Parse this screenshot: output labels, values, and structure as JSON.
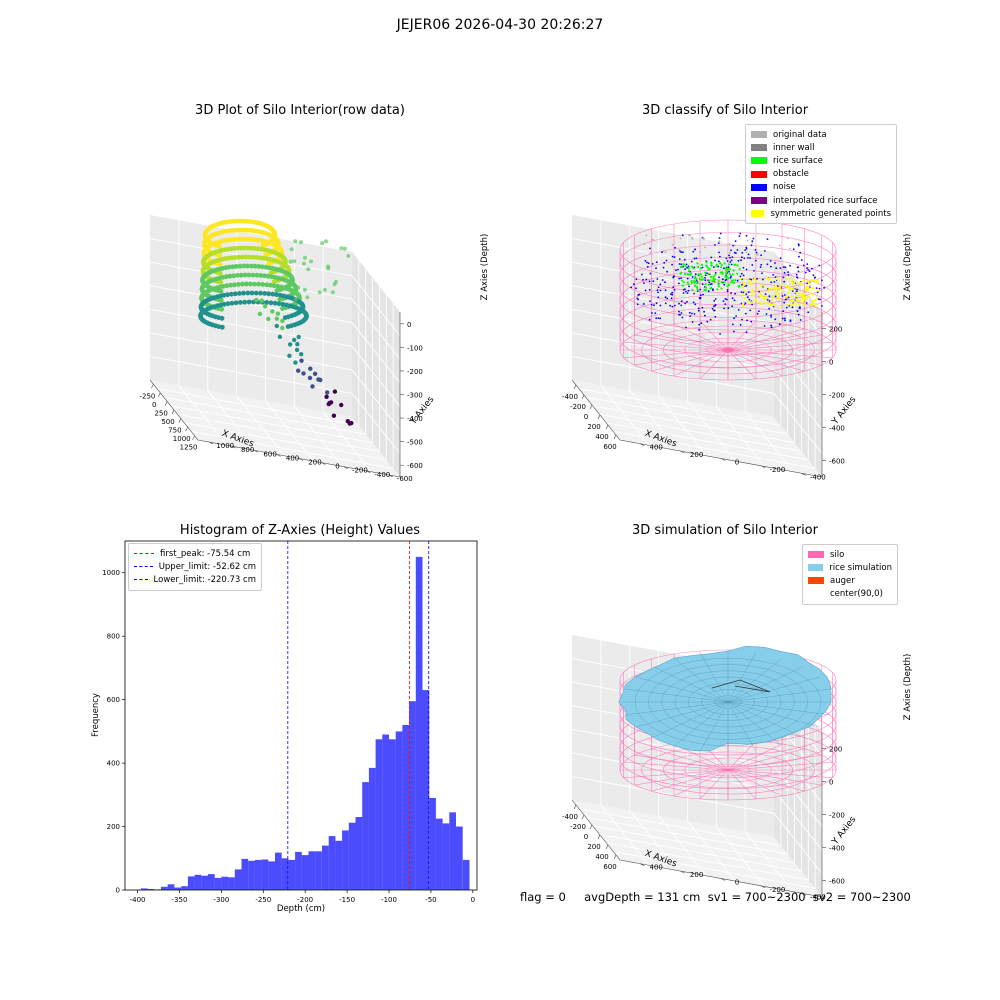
{
  "figure": {
    "title": "JEJER06 2026-04-30 20:26:27",
    "footer": "flag = 0     avgDepth = 131 cm  sv1 = 700~2300  sv2 = 700~2300"
  },
  "chart_data": [
    {
      "type": "scatter",
      "title": "3D Plot of Silo Interior(row data)",
      "xlabel": "X Axies",
      "ylabel": "Y Axies",
      "zlabel": "Z Axies (Depth)",
      "x_ticks": [
        "-250",
        "0",
        "250",
        "500",
        "750",
        "1000",
        "1250"
      ],
      "y_ticks": [
        "-600",
        "-400",
        "-200",
        "0",
        "200",
        "400",
        "600",
        "800",
        "1000"
      ],
      "z_ticks": [
        "0",
        "-100",
        "-200",
        "-300",
        "-400",
        "-500",
        "-600"
      ],
      "colormap": "viridis"
    },
    {
      "type": "scatter",
      "title": "3D classify of Silo Interior",
      "xlabel": "X Axies",
      "ylabel": "Y Axies",
      "zlabel": "Z Axies (Depth)",
      "x_ticks": [
        "-400",
        "-200",
        "0",
        "200",
        "400",
        "600"
      ],
      "y_ticks": [
        "-400",
        "-200",
        "0",
        "200",
        "400"
      ],
      "z_ticks": [
        "200",
        "0",
        "-200",
        "-400",
        "-600"
      ],
      "legend": [
        {
          "label": "original data",
          "color": "#b0b0b0"
        },
        {
          "label": "inner wall",
          "color": "#808080"
        },
        {
          "label": "rice surface",
          "color": "#00ff00"
        },
        {
          "label": "obstacle",
          "color": "#ff0000"
        },
        {
          "label": "noise",
          "color": "#0000ff"
        },
        {
          "label": "interpolated rice surface",
          "color": "#800080"
        },
        {
          "label": "symmetric generated points",
          "color": "#ffff00"
        }
      ]
    },
    {
      "type": "bar",
      "title": "Histogram of Z-Axies (Height) Values",
      "xlabel": "Depth (cm)",
      "ylabel": "Frequency",
      "xlim": [
        -415,
        5
      ],
      "ylim": [
        0,
        1100
      ],
      "x_ticks": [
        -400,
        -350,
        -300,
        -250,
        -200,
        -150,
        -100,
        -50,
        0
      ],
      "y_ticks": [
        0,
        200,
        400,
        600,
        800,
        1000
      ],
      "bin_start": -396,
      "bin_width": 8,
      "values": [
        5,
        3,
        2,
        10,
        18,
        8,
        12,
        43,
        48,
        45,
        50,
        38,
        42,
        40,
        65,
        98,
        92,
        95,
        96,
        90,
        118,
        100,
        95,
        120,
        110,
        122,
        122,
        140,
        170,
        155,
        188,
        212,
        230,
        340,
        385,
        475,
        490,
        475,
        500,
        520,
        595,
        1050,
        630,
        290,
        225,
        210,
        245,
        200,
        95
      ],
      "bar_color": "#0000ff",
      "bar_alpha": 0.7,
      "lines": [
        {
          "label": "first_peak: -75.54 cm",
          "x": -75.54,
          "color": "#ff0000"
        },
        {
          "label": "Upper_limit: -52.62 cm",
          "x": -52.62,
          "color": "#0000ff"
        },
        {
          "label": "Lower_limit: -220.73 cm",
          "x": -220.73,
          "color": "#0000ff"
        }
      ],
      "legend_position": "upper-left"
    },
    {
      "type": "surface",
      "title": "3D simulation of Silo Interior",
      "xlabel": "X Axies",
      "ylabel": "Y Axies",
      "zlabel": "Z Axies (Depth)",
      "x_ticks": [
        "-400",
        "-200",
        "0",
        "200",
        "400",
        "600"
      ],
      "y_ticks": [
        "-400",
        "-200",
        "0",
        "200",
        "400"
      ],
      "z_ticks": [
        "200",
        "0",
        "-200",
        "-400",
        "-600"
      ],
      "legend": [
        {
          "label": "silo",
          "color": "#ff69b4"
        },
        {
          "label": "rice simulation",
          "color": "#87ceeb"
        },
        {
          "label": "auger",
          "color": "#ff4500"
        },
        {
          "label": "center(90,0)",
          "color": "#ffffff"
        }
      ]
    }
  ]
}
